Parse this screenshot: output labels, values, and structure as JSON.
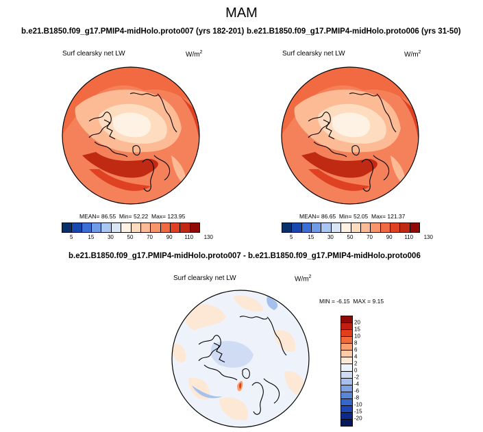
{
  "season": "MAM",
  "panels": [
    {
      "title": "b.e21.B1850.f09_g17.PMIP4-midHolo.proto007 (yrs 182-201)",
      "variable": "Surf clearsky net LW",
      "units_base": "W/m",
      "units_exp": "2",
      "stats": {
        "mean_label": "MEAN=",
        "mean": "86.55",
        "min_label": "Min=",
        "min": "52.22",
        "max_label": "Max=",
        "max": "123.95"
      }
    },
    {
      "title": "b.e21.B1850.f09_g17.PMIP4-midHolo.proto006 (yrs 31-50)",
      "variable": "Surf clearsky net LW",
      "units_base": "W/m",
      "units_exp": "2",
      "stats": {
        "mean_label": "MEAN=",
        "mean": "86.65",
        "min_label": "Min=",
        "min": "52.05",
        "max_label": "Max=",
        "max": "121.37"
      }
    }
  ],
  "diff_panel": {
    "title": "b.e21.B1850.f09_g17.PMIP4-midHolo.proto007 - b.e21.B1850.f09_g17.PMIP4-midHolo.proto006",
    "variable": "Surf clearsky net LW",
    "units_base": "W/m",
    "units_exp": "2",
    "stats": {
      "min_label": "MIN =",
      "min": "-6.15",
      "max_label": "MAX =",
      "max": "9.15"
    }
  },
  "abs_colorbar": {
    "colors": [
      "#08306b",
      "#1748b0",
      "#3b6fd6",
      "#6f9be8",
      "#a9c7f0",
      "#d9e6f6",
      "#fdf2e4",
      "#fddcc0",
      "#fcbb94",
      "#f9956a",
      "#f26a42",
      "#df4222",
      "#c02a12",
      "#8f0a06"
    ],
    "tick_labels": [
      "5",
      "15",
      "30",
      "50",
      "70",
      "90",
      "110",
      "130"
    ]
  },
  "diff_colorbar": {
    "colors": [
      "#8f0a06",
      "#c21d12",
      "#e2401c",
      "#f16a3c",
      "#f9a070",
      "#fccca8",
      "#fde8d6",
      "#eef3fb",
      "#cfdcf4",
      "#a6c0ec",
      "#7ea3e2",
      "#5a86da",
      "#3766cc",
      "#1d48b4",
      "#0b2a8c",
      "#051a5c"
    ],
    "tick_labels": [
      "20",
      "15",
      "10",
      "8",
      "6",
      "4",
      "2",
      "0",
      "-2",
      "-4",
      "-6",
      "-8",
      "-10",
      "-15",
      "-20"
    ]
  },
  "chart_data": [
    {
      "type": "heatmap",
      "title": "b.e21.B1850.f09_g17.PMIP4-midHolo.proto007 (yrs 182-201)",
      "variable": "Surf clearsky net LW",
      "units": "W/m2",
      "projection": "polar stereographic (north polar)",
      "mean": 86.55,
      "min": 52.22,
      "max": 123.95,
      "contour_levels": [
        5,
        10,
        15,
        20,
        30,
        40,
        50,
        60,
        70,
        80,
        90,
        100,
        110,
        120,
        130
      ]
    },
    {
      "type": "heatmap",
      "title": "b.e21.B1850.f09_g17.PMIP4-midHolo.proto006 (yrs 31-50)",
      "variable": "Surf clearsky net LW",
      "units": "W/m2",
      "projection": "polar stereographic (north polar)",
      "mean": 86.65,
      "min": 52.05,
      "max": 121.37,
      "contour_levels": [
        5,
        10,
        15,
        20,
        30,
        40,
        50,
        60,
        70,
        80,
        90,
        100,
        110,
        120,
        130
      ]
    },
    {
      "type": "heatmap",
      "title": "b.e21.B1850.f09_g17.PMIP4-midHolo.proto007 - b.e21.B1850.f09_g17.PMIP4-midHolo.proto006",
      "variable": "Surf clearsky net LW",
      "units": "W/m2",
      "projection": "polar stereographic (north polar)",
      "min": -6.15,
      "max": 9.15,
      "contour_levels": [
        -20,
        -15,
        -10,
        -8,
        -6,
        -4,
        -2,
        0,
        2,
        4,
        6,
        8,
        10,
        15,
        20
      ]
    }
  ]
}
